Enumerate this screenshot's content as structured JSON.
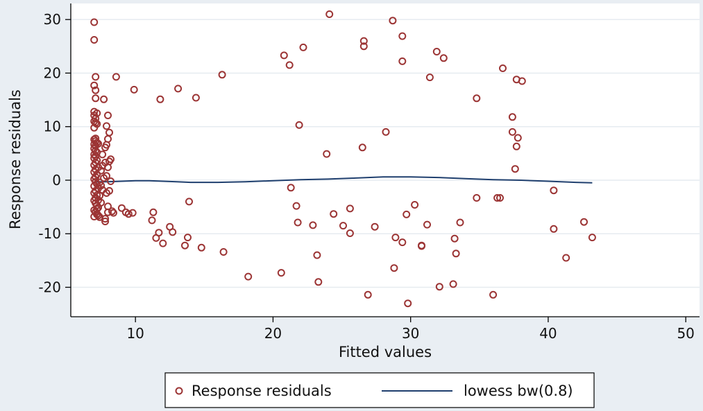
{
  "chart_data": {
    "type": "scatter",
    "xlabel": "Fitted values",
    "ylabel": "Response residuals",
    "xlim": [
      5.3,
      51
    ],
    "ylim": [
      -25.5,
      33
    ],
    "xticks": [
      10,
      20,
      30,
      40,
      50
    ],
    "yticks": [
      -20,
      -10,
      0,
      10,
      20,
      30
    ],
    "grid": "horizontal",
    "legend_position": "bottom",
    "colors": {
      "points": "#9c3535",
      "line": "#1f3f6e",
      "grid": "#e6ebf0",
      "background": "#e9eef3",
      "plot_background": "#ffffff"
    },
    "series": [
      {
        "name": "Response residuals",
        "kind": "scatter",
        "x": [
          7.0,
          7.0,
          7.1,
          7.0,
          7.1,
          7.1,
          7.0,
          7.2,
          7.0,
          7.1,
          7.0,
          7.1,
          7.2,
          7.0,
          7.1,
          7.0,
          7.1,
          7.2,
          7.0,
          7.1,
          7.3,
          7.0,
          7.1,
          7.2,
          7.0,
          7.1,
          7.0,
          7.2,
          7.1,
          7.0,
          7.3,
          7.1,
          7.0,
          7.2,
          7.1,
          7.0,
          7.1,
          7.2,
          7.0,
          7.3,
          7.1,
          7.0,
          7.2,
          7.1,
          7.0,
          7.1,
          7.2,
          7.3,
          7.0,
          7.1,
          7.2,
          7.0,
          7.1,
          7.2,
          7.3,
          7.4,
          7.2,
          7.5,
          7.3,
          7.4,
          7.6,
          7.5,
          7.4,
          7.7,
          7.5,
          7.6,
          7.8,
          7.6,
          7.8,
          7.9,
          8.0,
          8.1,
          7.7,
          7.9,
          8.0,
          8.1,
          8.2,
          7.8,
          8.1,
          7.9,
          8.0,
          7.9,
          8.0,
          8.2,
          8.4,
          8.6,
          8.0,
          7.8,
          8.3,
          9.0,
          9.3,
          9.5,
          9.8,
          9.9,
          11.2,
          11.3,
          11.5,
          11.7,
          11.8,
          12.0,
          12.5,
          12.7,
          13.1,
          13.6,
          13.8,
          13.9,
          14.4,
          14.8,
          16.3,
          16.4,
          18.2,
          20.6,
          20.8,
          21.2,
          21.3,
          21.7,
          21.8,
          21.9,
          22.2,
          22.9,
          23.2,
          23.3,
          23.9,
          24.1,
          24.4,
          25.1,
          25.6,
          25.6,
          26.5,
          26.6,
          26.6,
          26.9,
          27.4,
          28.2,
          28.7,
          28.8,
          28.9,
          29.4,
          29.4,
          29.4,
          29.7,
          29.8,
          30.3,
          30.8,
          30.8,
          31.2,
          31.4,
          31.9,
          32.1,
          32.4,
          33.1,
          33.2,
          33.3,
          33.6,
          34.8,
          34.8,
          36.0,
          36.3,
          36.5,
          36.7,
          37.4,
          37.4,
          37.6,
          37.7,
          37.7,
          37.8,
          38.1,
          40.4,
          40.4,
          41.3,
          42.6,
          43.2
        ],
        "y": [
          29.5,
          26.2,
          19.3,
          17.7,
          16.8,
          15.3,
          12.8,
          12.5,
          12.1,
          11.5,
          11.0,
          10.7,
          10.5,
          9.8,
          7.8,
          7.6,
          7.3,
          7.0,
          6.7,
          6.4,
          6.8,
          5.9,
          5.5,
          5.2,
          4.8,
          4.5,
          4.1,
          3.7,
          3.3,
          2.8,
          2.4,
          2.0,
          1.5,
          1.1,
          0.6,
          0.2,
          -0.3,
          -0.7,
          -1.1,
          -1.5,
          -2.0,
          -2.4,
          -2.8,
          -3.3,
          -3.8,
          -4.3,
          -4.7,
          -5.1,
          -5.6,
          -6.0,
          -6.4,
          -6.8,
          -5.9,
          -6.3,
          -6.6,
          -6.9,
          -5.4,
          -4.2,
          -3.7,
          -2.9,
          -1.8,
          -1.0,
          -0.4,
          0.4,
          1.8,
          2.7,
          3.3,
          4.8,
          6.1,
          6.6,
          7.7,
          8.9,
          15.1,
          10.1,
          12.1,
          3.5,
          3.9,
          -7.7,
          -2.0,
          -2.4,
          -4.9,
          0.8,
          2.4,
          -0.2,
          -6.1,
          19.3,
          -6.0,
          -7.2,
          -5.8,
          -5.2,
          -6.0,
          -6.3,
          -6.1,
          16.9,
          -7.5,
          -6.0,
          -10.8,
          -9.8,
          15.1,
          -11.8,
          -8.7,
          -9.7,
          17.1,
          -12.2,
          -10.7,
          -4.0,
          15.4,
          -12.6,
          19.7,
          -13.4,
          -18.0,
          -17.3,
          23.3,
          21.5,
          -1.4,
          -4.8,
          -7.9,
          10.3,
          24.8,
          -8.4,
          -14.0,
          -19.0,
          4.9,
          31.0,
          -6.3,
          -8.5,
          -9.9,
          -5.3,
          6.1,
          26.0,
          25.0,
          -21.4,
          -8.7,
          9.0,
          29.8,
          -16.4,
          -10.7,
          22.2,
          26.9,
          -11.6,
          -6.4,
          -23.0,
          -4.6,
          -12.3,
          -12.2,
          -8.3,
          19.2,
          24.0,
          -19.9,
          22.8,
          -19.4,
          -10.9,
          -13.7,
          -7.9,
          15.3,
          -3.3,
          -21.4,
          -3.3,
          -3.3,
          20.9,
          11.8,
          9.0,
          2.1,
          6.3,
          18.8,
          7.9,
          18.5,
          -1.9,
          -9.1,
          -14.5,
          -7.8,
          -10.7
        ]
      },
      {
        "name": "lowess bw(0.8)",
        "kind": "line",
        "x": [
          7.0,
          8.0,
          9.0,
          10.0,
          11.0,
          12.0,
          13.0,
          14.0,
          16.0,
          18.0,
          20.0,
          22.0,
          24.0,
          26.0,
          28.0,
          30.0,
          32.0,
          34.0,
          36.0,
          38.0,
          40.0,
          42.0,
          43.2
        ],
        "y": [
          -0.3,
          -0.3,
          -0.2,
          -0.1,
          -0.1,
          -0.2,
          -0.3,
          -0.4,
          -0.4,
          -0.3,
          -0.1,
          0.1,
          0.2,
          0.4,
          0.6,
          0.6,
          0.5,
          0.3,
          0.1,
          0.0,
          -0.2,
          -0.4,
          -0.5
        ]
      }
    ]
  }
}
